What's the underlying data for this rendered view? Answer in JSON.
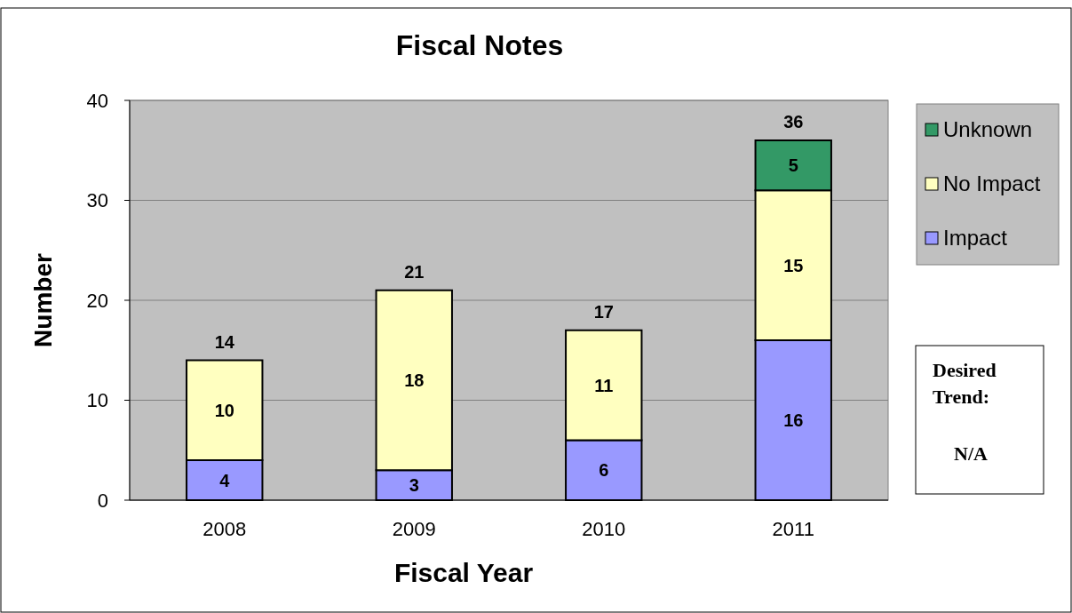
{
  "chart_data": {
    "type": "bar",
    "title": "Fiscal Notes",
    "xlabel": "Fiscal Year",
    "ylabel": "Number",
    "categories": [
      "2008",
      "2009",
      "2010",
      "2011"
    ],
    "stacked": true,
    "series": [
      {
        "name": "Impact",
        "color": "#9999ff",
        "values": [
          4,
          3,
          6,
          16
        ]
      },
      {
        "name": "No Impact",
        "color": "#ffffc0",
        "values": [
          10,
          18,
          11,
          15
        ]
      },
      {
        "name": "Unknown",
        "color": "#339966",
        "values": [
          null,
          null,
          null,
          5
        ]
      }
    ],
    "totals": [
      "14",
      "21",
      "17",
      "36"
    ],
    "data_labels": true,
    "ylim": [
      0,
      40
    ],
    "yticks": [
      0,
      10,
      20,
      30,
      40
    ],
    "grid": "y",
    "legend": "right",
    "annotations": [
      "Desired Trend:",
      "N/A"
    ]
  }
}
